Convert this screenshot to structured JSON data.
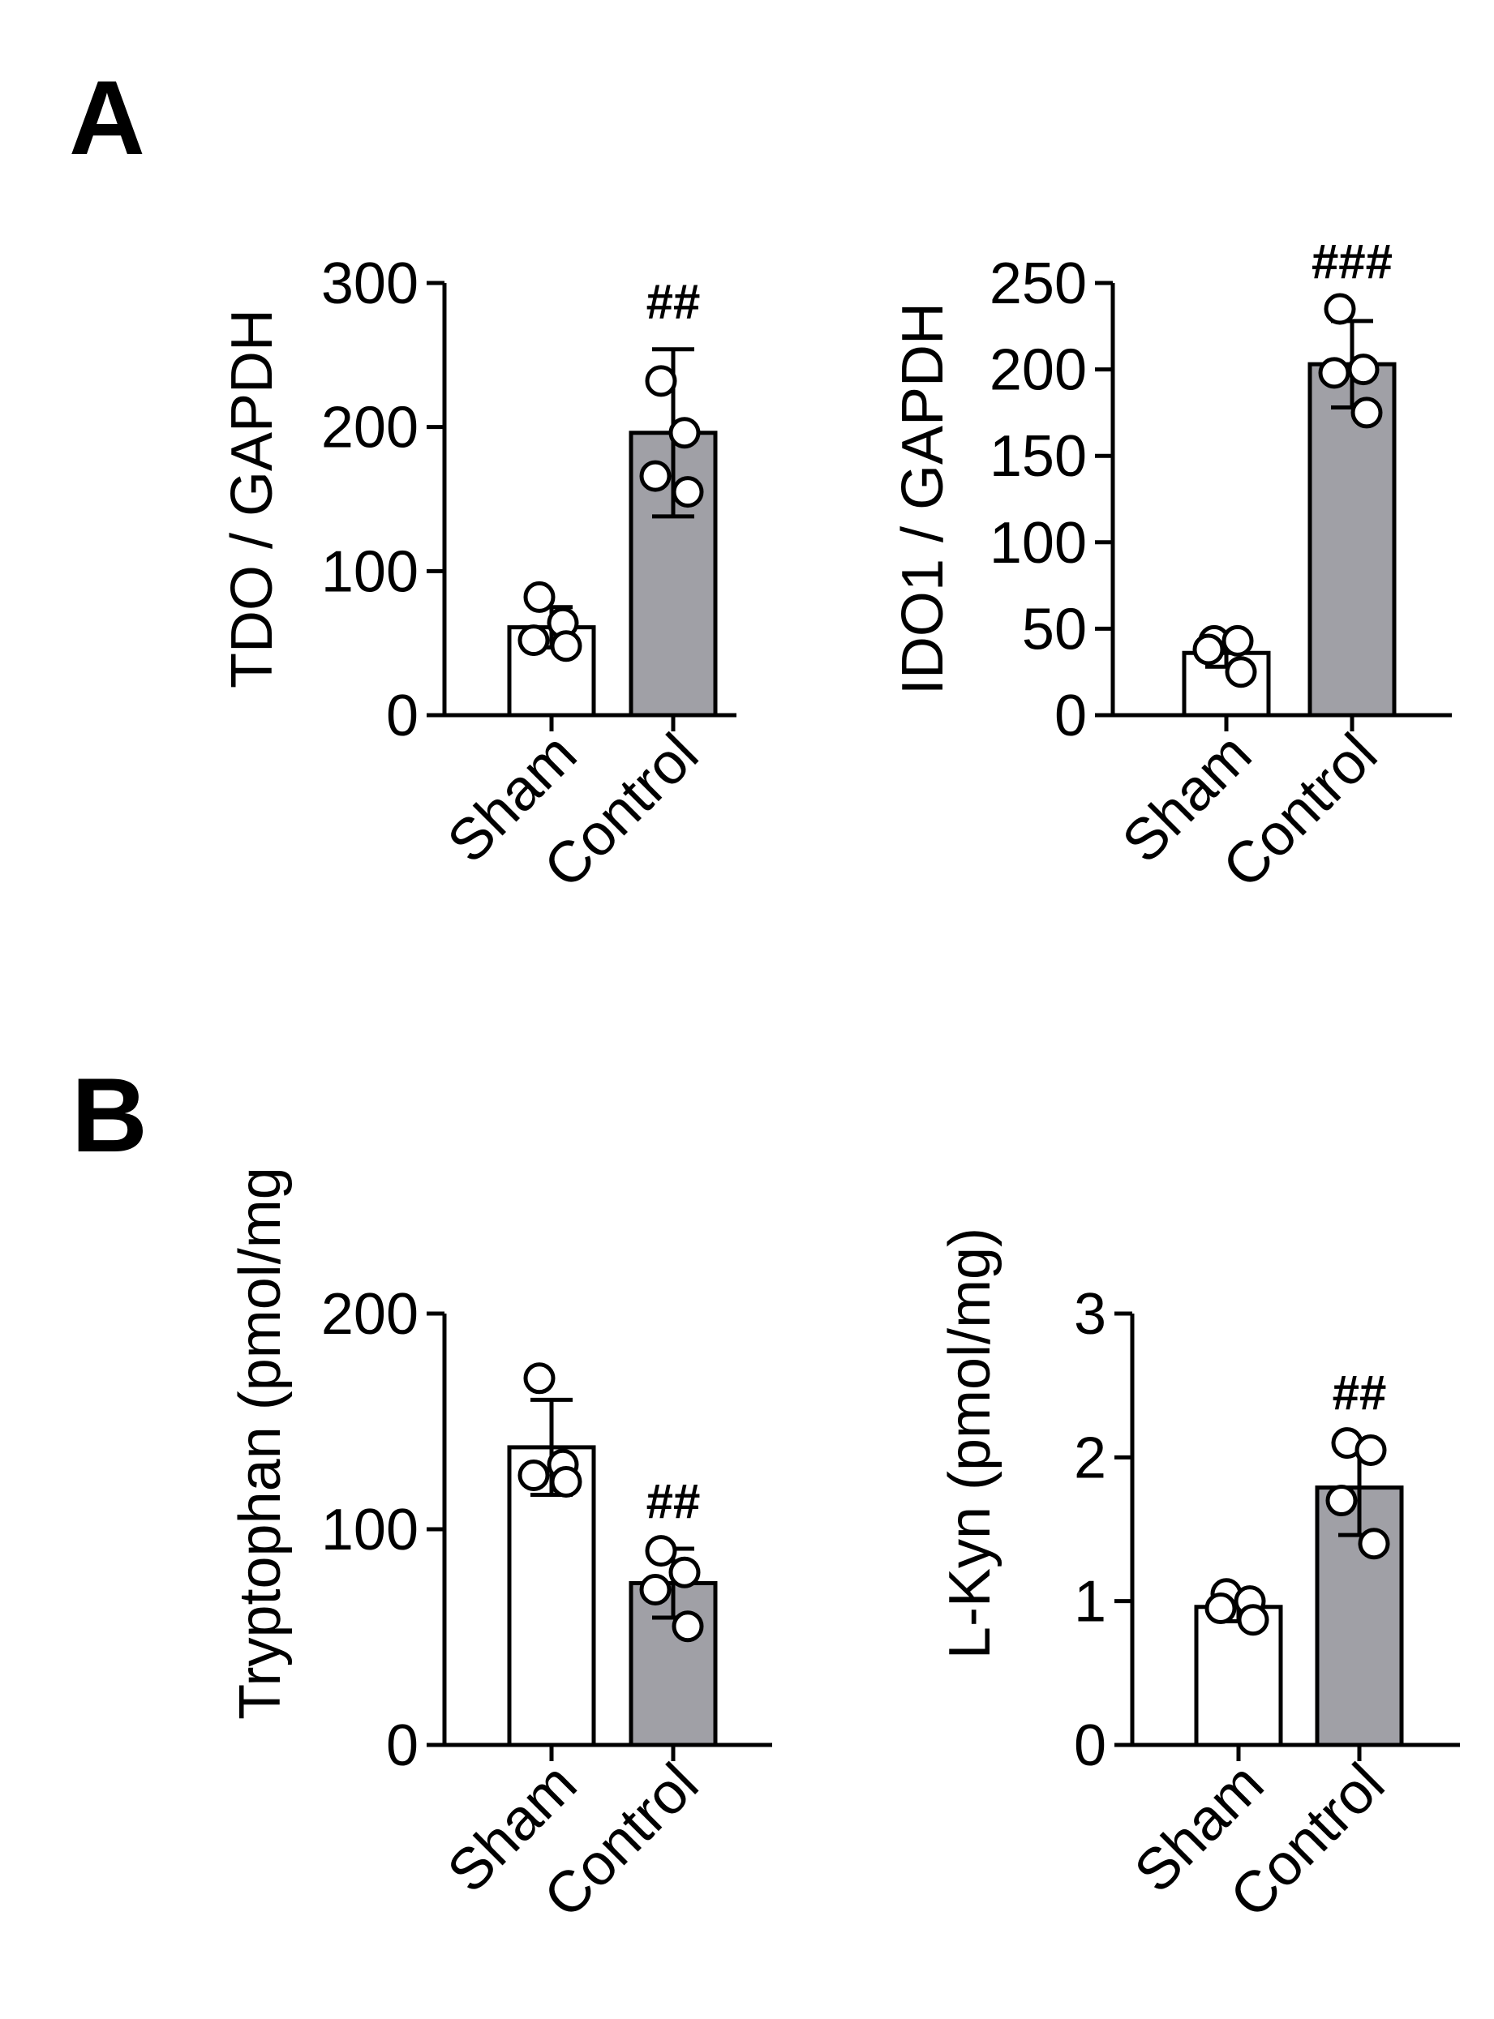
{
  "panel_labels": [
    "A",
    "B"
  ],
  "colors": {
    "sham_fill": "#ffffff",
    "control_fill": "#a0a0a6",
    "stroke": "#000000"
  },
  "chart_data": [
    {
      "type": "bar",
      "panel": "A",
      "ylabel": "TDO / GAPDH",
      "categories": [
        "Sham",
        "Control"
      ],
      "values": [
        61,
        196
      ],
      "errors": [
        14,
        58
      ],
      "points": [
        [
          82,
          64,
          52,
          48
        ],
        [
          232,
          196,
          166,
          155
        ]
      ],
      "ylim": [
        0,
        300
      ],
      "yticks": [
        "0",
        "100",
        "200",
        "300"
      ],
      "significance": [
        "",
        "##"
      ]
    },
    {
      "type": "bar",
      "panel": "A",
      "ylabel": "IDO1 / GAPDH",
      "categories": [
        "Sham",
        "Control"
      ],
      "values": [
        36,
        203
      ],
      "errors": [
        8,
        25
      ],
      "points": [
        [
          43,
          43,
          38,
          25
        ],
        [
          235,
          200,
          198,
          175
        ]
      ],
      "ylim": [
        0,
        250
      ],
      "yticks": [
        "0",
        "50",
        "100",
        "150",
        "200",
        "250"
      ],
      "significance": [
        "",
        "###"
      ]
    },
    {
      "type": "bar",
      "panel": "B",
      "ylabel": "Tryptophan (pmol/mg",
      "categories": [
        "Sham",
        "Control"
      ],
      "values": [
        138,
        75
      ],
      "errors": [
        22,
        16
      ],
      "points": [
        [
          170,
          130,
          125,
          122
        ],
        [
          90,
          80,
          72,
          55
        ]
      ],
      "ylim": [
        0,
        200
      ],
      "yticks": [
        "0",
        "100",
        "200"
      ],
      "significance": [
        "",
        "##"
      ]
    },
    {
      "type": "bar",
      "panel": "B",
      "ylabel": "L-Kyn (pmol/mg)",
      "categories": [
        "Sham",
        "Control"
      ],
      "values": [
        0.96,
        1.79
      ],
      "errors": [
        0.1,
        0.33
      ],
      "points": [
        [
          1.05,
          1.0,
          0.95,
          0.87
        ],
        [
          2.1,
          2.05,
          1.7,
          1.4
        ]
      ],
      "ylim": [
        0,
        3
      ],
      "yticks": [
        "0",
        "1",
        "2",
        "3"
      ],
      "significance": [
        "",
        "##"
      ]
    }
  ]
}
